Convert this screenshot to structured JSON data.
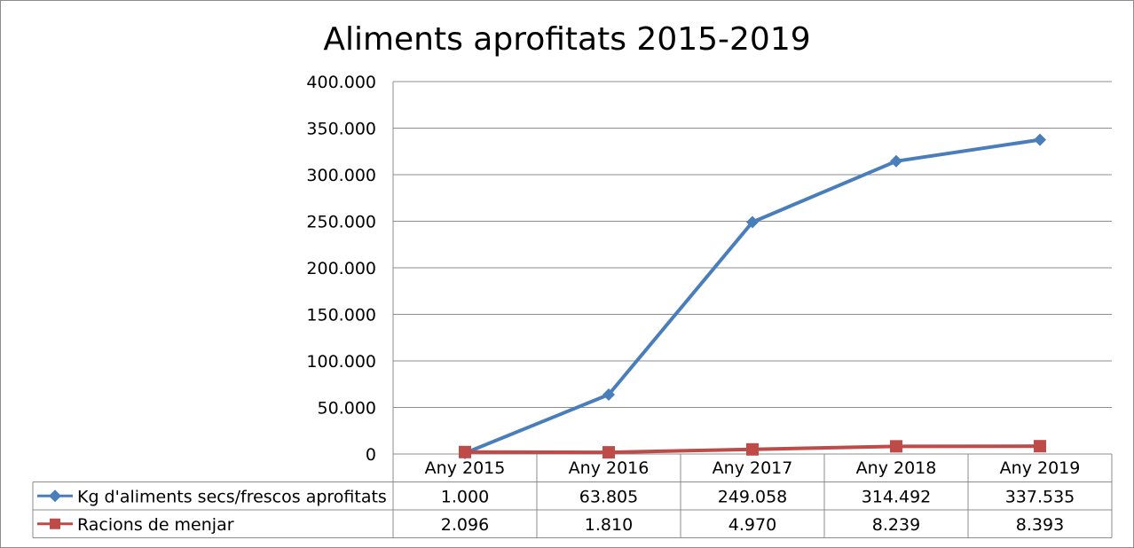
{
  "chart_data": {
    "type": "line",
    "title": "Aliments aprofitats 2015-2019",
    "xlabel": "",
    "ylabel": "",
    "ylim": [
      0,
      400000
    ],
    "y_ticks": [
      0,
      50000,
      100000,
      150000,
      200000,
      250000,
      300000,
      350000,
      400000
    ],
    "y_tick_labels": [
      "0",
      "50.000",
      "100.000",
      "150.000",
      "200.000",
      "250.000",
      "300.000",
      "350.000",
      "400.000"
    ],
    "grid": true,
    "legend_placement": "data-table",
    "categories": [
      "Any 2015",
      "Any 2016",
      "Any 2017",
      "Any 2018",
      "Any 2019"
    ],
    "series": [
      {
        "name": "Kg d'aliments secs/frescos aprofitats",
        "values": [
          1000,
          63805,
          249058,
          314492,
          337535
        ],
        "value_labels": [
          "1.000",
          "63.805",
          "249.058",
          "314.492",
          "337.535"
        ],
        "color": "#4a7ebb",
        "marker": "diamond"
      },
      {
        "name": "Racions de menjar",
        "values": [
          2096,
          1810,
          4970,
          8239,
          8393
        ],
        "value_labels": [
          "2.096",
          "1.810",
          "4.970",
          "8.239",
          "8.393"
        ],
        "color": "#be4b48",
        "marker": "square"
      }
    ]
  }
}
